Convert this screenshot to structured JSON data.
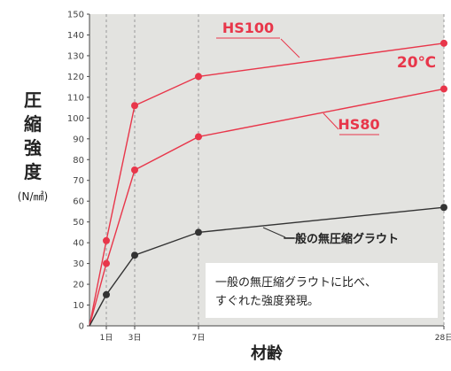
{
  "chart_data": {
    "type": "line",
    "ylabel": "圧縮強度",
    "yunit": "(N/㎟)",
    "xlabel": "材齢",
    "x": [
      0,
      1,
      3,
      7,
      28
    ],
    "xticks": [
      {
        "value": 1,
        "label": "1日"
      },
      {
        "value": 3,
        "label": "3日"
      },
      {
        "value": 7,
        "label": "7日"
      },
      {
        "value": 28,
        "label": "28日"
      }
    ],
    "ylim": [
      0,
      150
    ],
    "yticks": [
      0,
      10,
      20,
      30,
      40,
      50,
      60,
      70,
      80,
      90,
      100,
      110,
      120,
      130,
      140,
      150
    ],
    "grid": "vertical dashed at ticks",
    "series": [
      {
        "name": "HS100",
        "color": "#e8364a",
        "values": [
          0,
          41,
          106,
          120,
          136
        ]
      },
      {
        "name": "HS80",
        "color": "#e8364a",
        "values": [
          0,
          30,
          75,
          91,
          114
        ]
      },
      {
        "name": "一般の無圧縮グラウト",
        "color": "#333333",
        "values": [
          0,
          15,
          34,
          45,
          57
        ]
      }
    ],
    "temperature_label": "20℃",
    "note": [
      "一般の無圧縮グラウトに比べ、",
      "すぐれた強度発現。"
    ],
    "colors": {
      "plot_background": "#e3e3e0",
      "accent": "#e8364a",
      "baseline": "#333333"
    }
  }
}
